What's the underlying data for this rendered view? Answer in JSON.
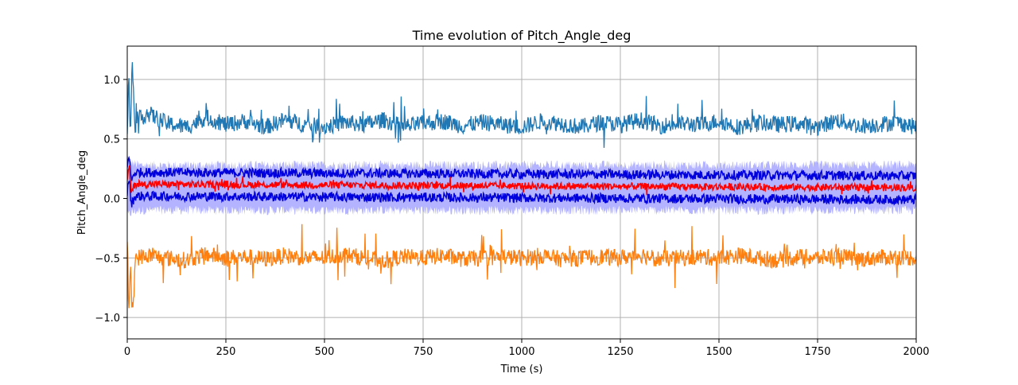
{
  "chart_data": {
    "type": "line",
    "title": "Time evolution of Pitch_Angle_deg",
    "xlabel": "Time (s)",
    "ylabel": "Pitch_Angle_deg",
    "xlim": [
      0,
      2000
    ],
    "ylim": [
      -1.18,
      1.28
    ],
    "grid": true,
    "legend": "none",
    "x_ticks": [
      0,
      250,
      500,
      750,
      1000,
      1250,
      1500,
      1750,
      2000
    ],
    "x_tick_labels": [
      "0",
      "250",
      "500",
      "750",
      "1000",
      "1250",
      "1500",
      "1750",
      "2000"
    ],
    "y_ticks": [
      -1.0,
      -0.5,
      0.0,
      0.5,
      1.0
    ],
    "y_tick_labels": [
      "−1.0",
      "−0.5",
      "0.0",
      "0.5",
      "1.0"
    ],
    "colors": {
      "upper": "#1f77b4",
      "lower": "#ff7f0e",
      "band": "#b3b3ff",
      "band_edges": "#0000dd",
      "mean": "#ff0000",
      "grid": "#b0b0b0"
    },
    "series": [
      {
        "role": "upper",
        "x": [
          0,
          4,
          8,
          12,
          20,
          50,
          100,
          150,
          200,
          250,
          300,
          350,
          400,
          450,
          500,
          550,
          600,
          650,
          700,
          750,
          800,
          850,
          900,
          950,
          1000,
          1050,
          1100,
          1150,
          1200,
          1250,
          1300,
          1350,
          1400,
          1450,
          1500,
          1550,
          1600,
          1650,
          1700,
          1750,
          1800,
          1850,
          1900,
          1950,
          2000
        ],
        "values": [
          0.55,
          1.1,
          0.45,
          1.18,
          0.62,
          0.72,
          0.63,
          0.6,
          0.68,
          0.62,
          0.65,
          0.6,
          0.66,
          0.62,
          0.6,
          0.64,
          0.62,
          0.66,
          0.6,
          0.63,
          0.65,
          0.61,
          0.64,
          0.62,
          0.6,
          0.65,
          0.63,
          0.6,
          0.64,
          0.62,
          0.66,
          0.61,
          0.63,
          0.62,
          0.65,
          0.6,
          0.64,
          0.62,
          0.63,
          0.6,
          0.66,
          0.61,
          0.62,
          0.64,
          0.6
        ]
      },
      {
        "role": "lower",
        "x": [
          0,
          4,
          8,
          12,
          20,
          50,
          100,
          150,
          200,
          250,
          300,
          350,
          400,
          450,
          500,
          550,
          600,
          650,
          700,
          750,
          800,
          850,
          900,
          950,
          1000,
          1050,
          1100,
          1150,
          1200,
          1250,
          1300,
          1350,
          1400,
          1450,
          1500,
          1550,
          1600,
          1650,
          1700,
          1750,
          1800,
          1850,
          1900,
          1950,
          2000
        ],
        "values": [
          -0.4,
          -1.0,
          -0.5,
          -1.06,
          -0.5,
          -0.48,
          -0.5,
          -0.52,
          -0.47,
          -0.5,
          -0.49,
          -0.51,
          -0.48,
          -0.5,
          -0.5,
          -0.47,
          -0.5,
          -0.52,
          -0.49,
          -0.5,
          -0.48,
          -0.51,
          -0.5,
          -0.49,
          -0.5,
          -0.48,
          -0.51,
          -0.5,
          -0.49,
          -0.5,
          -0.47,
          -0.51,
          -0.5,
          -0.49,
          -0.5,
          -0.48,
          -0.5,
          -0.52,
          -0.49,
          -0.5,
          -0.48,
          -0.51,
          -0.5,
          -0.49,
          -0.5
        ]
      },
      {
        "role": "band_upper",
        "x": [
          0,
          10,
          30,
          2000
        ],
        "values": [
          0.35,
          0.3,
          0.28,
          0.28
        ]
      },
      {
        "role": "band_lower",
        "x": [
          0,
          10,
          30,
          2000
        ],
        "values": [
          -0.15,
          -0.12,
          -0.1,
          -0.1
        ]
      },
      {
        "role": "mean",
        "x": [
          0,
          5,
          10,
          20,
          2000
        ],
        "values": [
          0.15,
          0.28,
          0.05,
          0.12,
          0.09
        ]
      }
    ]
  }
}
